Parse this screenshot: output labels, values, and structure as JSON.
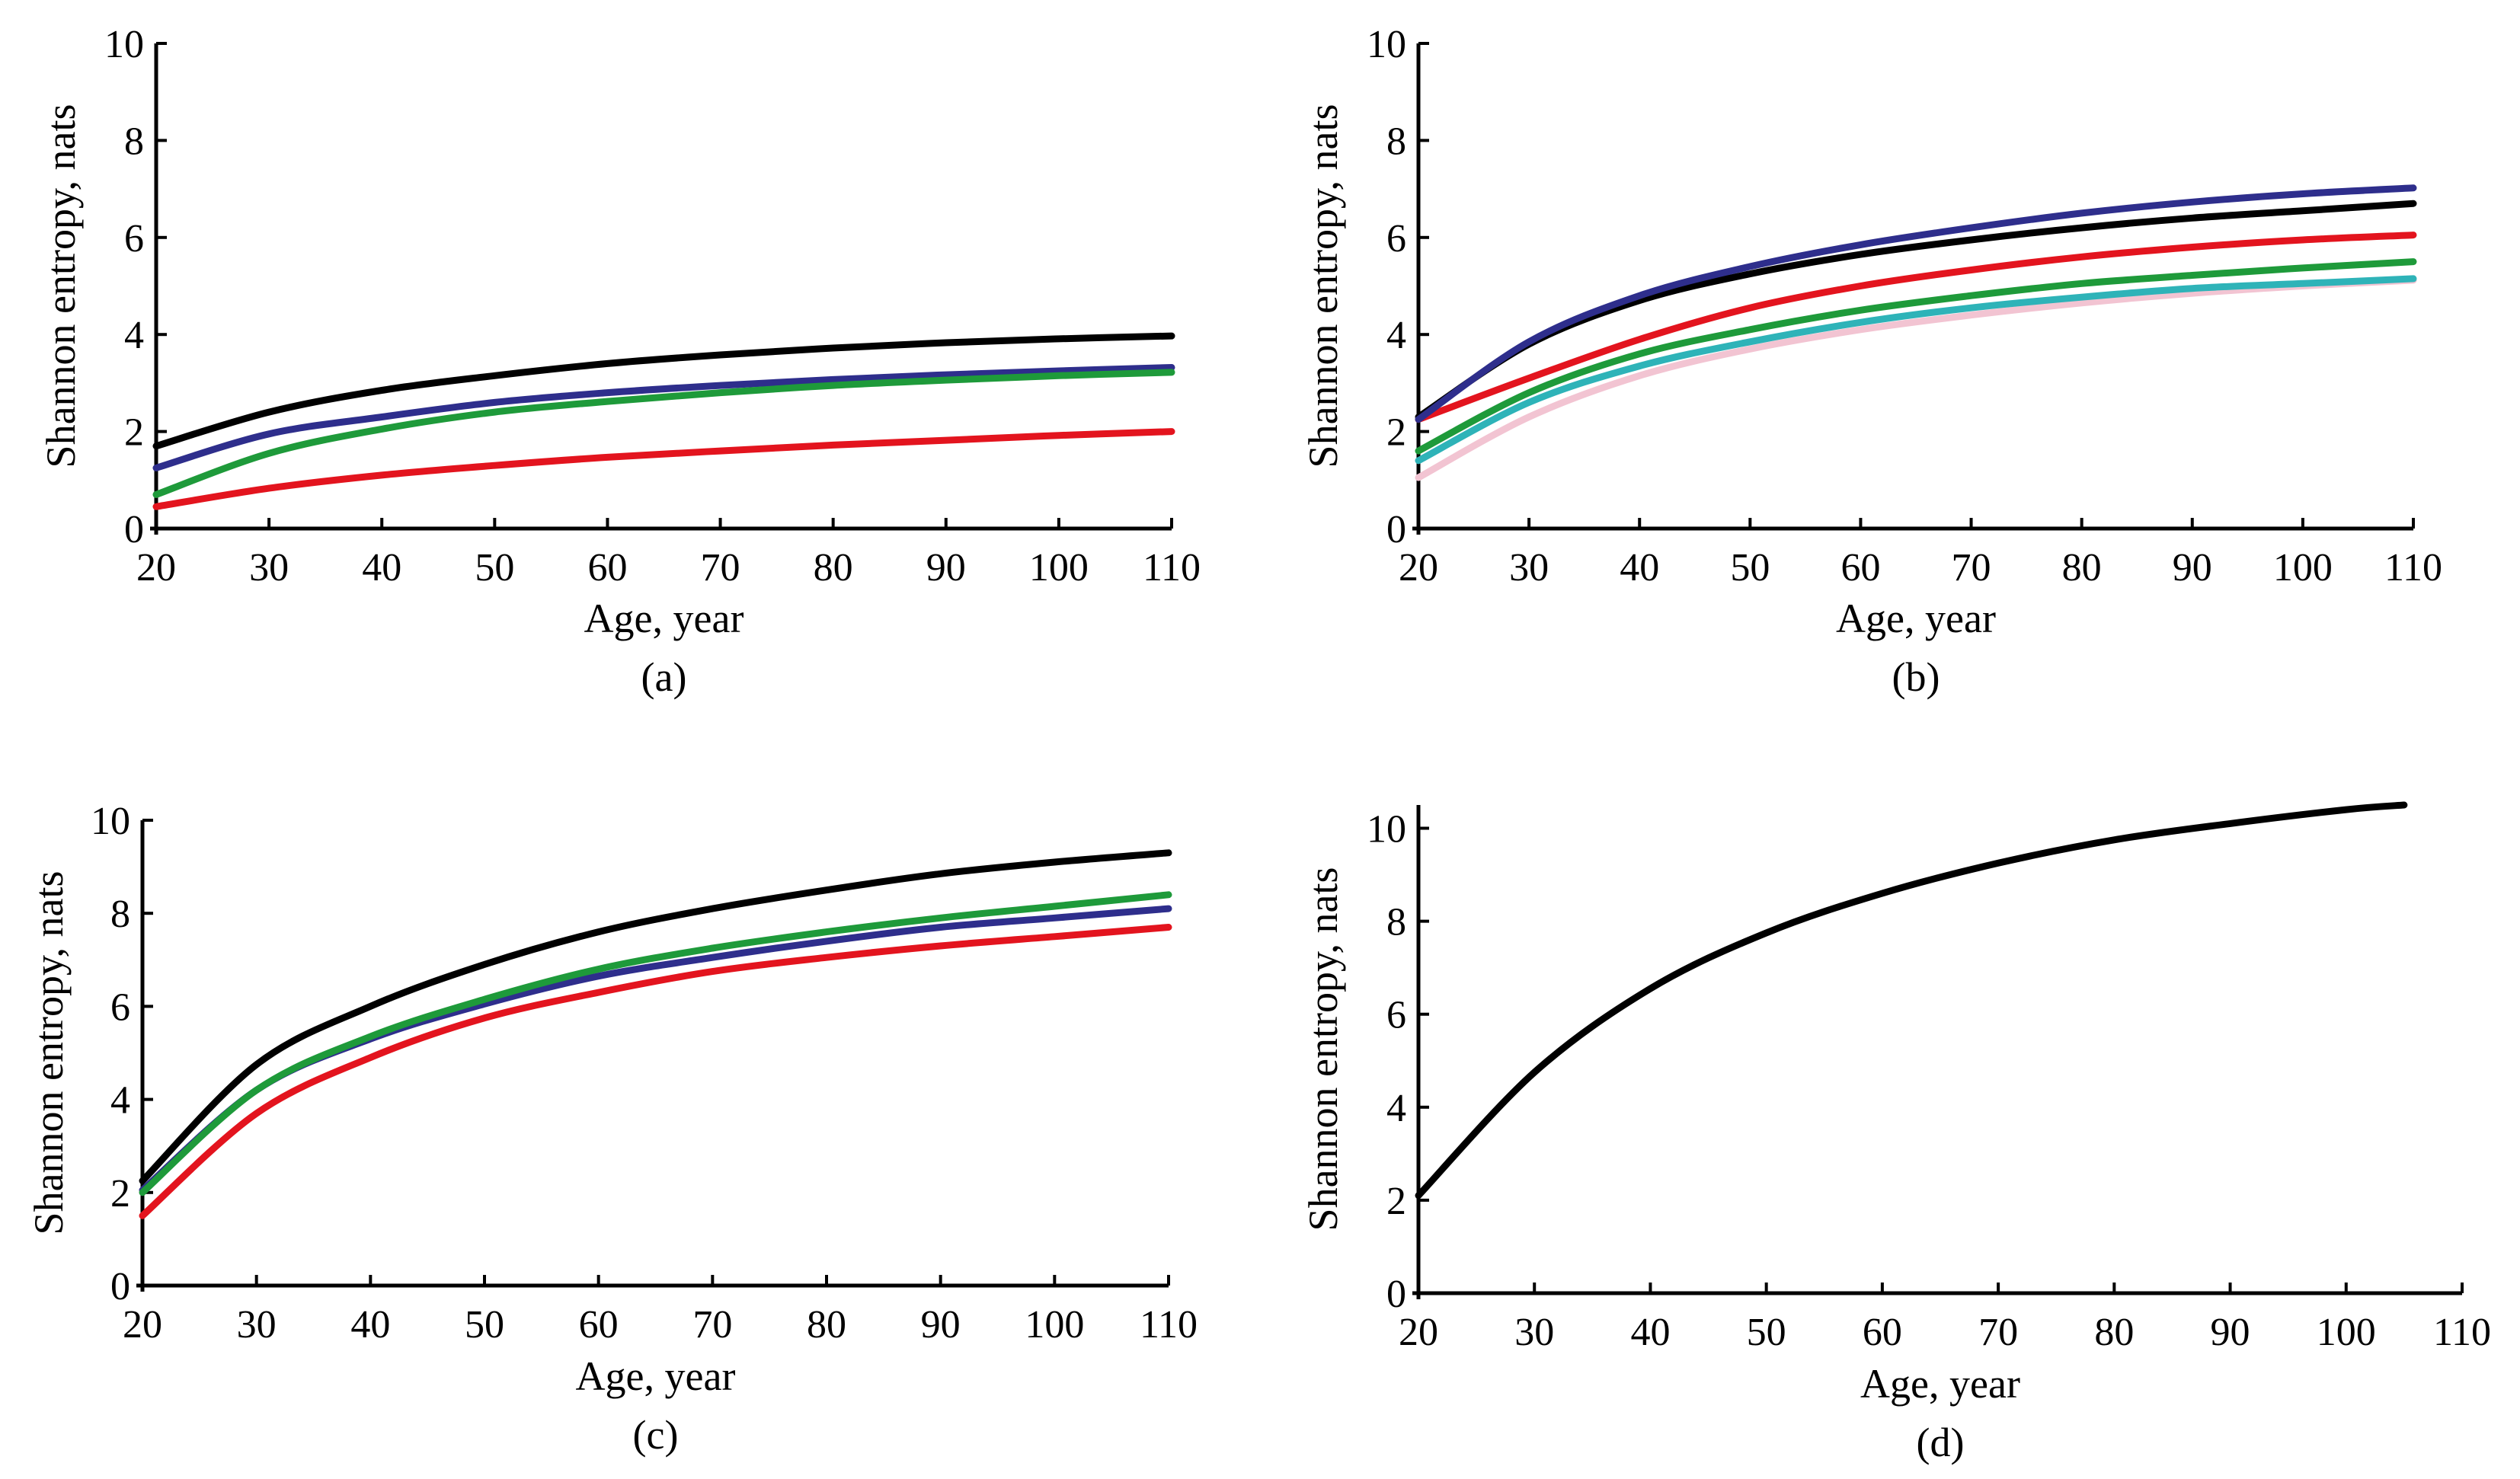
{
  "chart_data": [
    {
      "type": "line",
      "panel_label": "(a)",
      "xlabel": "Age, year",
      "ylabel": "Shannon entropy, nats",
      "xlim": [
        20,
        110
      ],
      "ylim": [
        0,
        10
      ],
      "xticks": [
        20,
        30,
        40,
        50,
        60,
        70,
        80,
        90,
        100,
        110
      ],
      "yticks": [
        0,
        2,
        4,
        6,
        8,
        10
      ],
      "grid": false,
      "x": [
        20,
        30,
        40,
        50,
        60,
        70,
        80,
        90,
        100,
        110
      ],
      "series": [
        {
          "color": "#000000",
          "values": [
            1.7,
            2.4,
            2.85,
            3.15,
            3.4,
            3.58,
            3.72,
            3.83,
            3.91,
            3.97
          ]
        },
        {
          "color": "#2e2e8c",
          "values": [
            1.25,
            1.95,
            2.3,
            2.6,
            2.8,
            2.95,
            3.07,
            3.17,
            3.25,
            3.32
          ]
        },
        {
          "color": "#1e9a3a",
          "values": [
            0.7,
            1.55,
            2.05,
            2.4,
            2.62,
            2.8,
            2.95,
            3.06,
            3.15,
            3.22
          ]
        },
        {
          "color": "#e3141e",
          "values": [
            0.45,
            0.83,
            1.1,
            1.3,
            1.47,
            1.6,
            1.72,
            1.82,
            1.92,
            2.0
          ]
        }
      ]
    },
    {
      "type": "line",
      "panel_label": "(b)",
      "xlabel": "Age, year",
      "ylabel": "Shannon entropy, nats",
      "xlim": [
        20,
        110
      ],
      "ylim": [
        0,
        10
      ],
      "xticks": [
        20,
        30,
        40,
        50,
        60,
        70,
        80,
        90,
        100,
        110
      ],
      "yticks": [
        0,
        2,
        4,
        6,
        8,
        10
      ],
      "grid": false,
      "x": [
        20,
        30,
        40,
        50,
        60,
        70,
        80,
        90,
        100,
        110
      ],
      "series": [
        {
          "color": "#f2c4d2",
          "values": [
            1.05,
            2.3,
            3.15,
            3.7,
            4.1,
            4.4,
            4.65,
            4.85,
            5.0,
            5.12
          ]
        },
        {
          "color": "#2eb3b8",
          "values": [
            1.4,
            2.6,
            3.35,
            3.85,
            4.25,
            4.55,
            4.77,
            4.95,
            5.05,
            5.15
          ]
        },
        {
          "color": "#1e9a3a",
          "values": [
            1.6,
            2.8,
            3.6,
            4.1,
            4.5,
            4.8,
            5.05,
            5.22,
            5.37,
            5.5
          ]
        },
        {
          "color": "#e3141e",
          "values": [
            2.25,
            3.1,
            3.9,
            4.55,
            5.0,
            5.33,
            5.6,
            5.8,
            5.95,
            6.05
          ]
        },
        {
          "color": "#000000",
          "values": [
            2.3,
            3.8,
            4.7,
            5.25,
            5.65,
            5.95,
            6.2,
            6.4,
            6.55,
            6.7
          ]
        },
        {
          "color": "#2e2e8c",
          "values": [
            2.25,
            3.85,
            4.8,
            5.4,
            5.85,
            6.2,
            6.5,
            6.73,
            6.9,
            7.02
          ]
        }
      ]
    },
    {
      "type": "line",
      "panel_label": "(c)",
      "xlabel": "Age, year",
      "ylabel": "Shannon entropy, nats",
      "xlim": [
        20,
        110
      ],
      "ylim": [
        0,
        10
      ],
      "xticks": [
        20,
        30,
        40,
        50,
        60,
        70,
        80,
        90,
        100,
        110
      ],
      "yticks": [
        0,
        2,
        4,
        6,
        8,
        10
      ],
      "grid": false,
      "x": [
        20,
        30,
        40,
        50,
        60,
        70,
        80,
        90,
        100,
        110
      ],
      "series": [
        {
          "color": "#e3141e",
          "values": [
            1.5,
            3.7,
            4.9,
            5.75,
            6.3,
            6.75,
            7.05,
            7.3,
            7.5,
            7.7
          ]
        },
        {
          "color": "#2e2e8c",
          "values": [
            2.05,
            4.2,
            5.3,
            6.05,
            6.65,
            7.05,
            7.4,
            7.7,
            7.9,
            8.1
          ]
        },
        {
          "color": "#1e9a3a",
          "values": [
            2.0,
            4.2,
            5.35,
            6.15,
            6.8,
            7.25,
            7.6,
            7.9,
            8.15,
            8.4
          ]
        },
        {
          "color": "#000000",
          "values": [
            2.25,
            4.75,
            6.0,
            6.9,
            7.6,
            8.1,
            8.5,
            8.85,
            9.1,
            9.3
          ]
        }
      ]
    },
    {
      "type": "line",
      "panel_label": "(d)",
      "xlabel": "Age, year",
      "ylabel": "Shannon entropy, nats",
      "xlim": [
        20,
        110
      ],
      "ylim": [
        0,
        10.5
      ],
      "xticks": [
        20,
        30,
        40,
        50,
        60,
        70,
        80,
        90,
        100,
        110
      ],
      "yticks": [
        0,
        2,
        4,
        6,
        8,
        10
      ],
      "grid": false,
      "x": [
        20,
        30,
        40,
        50,
        60,
        70,
        80,
        90,
        100,
        105
      ],
      "series": [
        {
          "color": "#000000",
          "values": [
            2.1,
            4.75,
            6.55,
            7.75,
            8.6,
            9.25,
            9.75,
            10.1,
            10.4,
            10.5
          ]
        }
      ]
    }
  ]
}
